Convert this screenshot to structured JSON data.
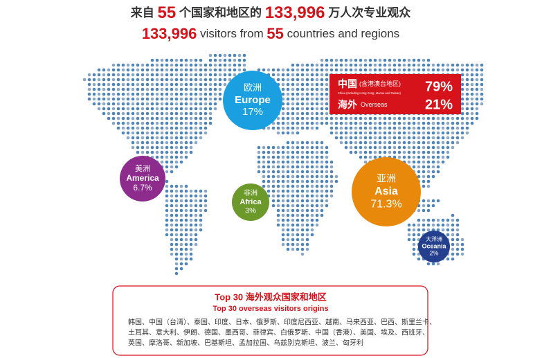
{
  "headline": {
    "zh": [
      "来自",
      "55",
      "个国家和地区的",
      "133,996",
      "万人次专业观众"
    ],
    "en": [
      "133,996",
      " visitors from ",
      "55",
      " countries and regions"
    ]
  },
  "regions": [
    {
      "zh": "欧洲",
      "en": "Europe",
      "share": "17%"
    },
    {
      "zh": "美洲",
      "en": "America",
      "share": "6.7%"
    },
    {
      "zh": "非洲",
      "en": "Africa",
      "share": "3%"
    },
    {
      "zh": "亚洲",
      "en": "Asia",
      "share": "71.3%"
    },
    {
      "zh": "大洋洲",
      "en": "Oceania",
      "share": "2%"
    }
  ],
  "share_box": [
    {
      "zh": "中国",
      "note": "(含港澳台地区)",
      "en": "China (Including Hong Kong, Macau and Taiwan)",
      "share": "79%"
    },
    {
      "zh": "海外",
      "en": "Overseas",
      "share": "21%"
    }
  ],
  "top30": {
    "title_zh": "Top 30 海外观众国家和地区",
    "title_en": "Top 30 overseas visitors origins",
    "lines": [
      "韩国、中国（台湾）、泰国、印度、日本、俄罗斯、印度尼西亚、越南、马来西亚、巴西、斯里兰卡、",
      "土耳其、意大利、伊朗、德国、墨西哥、菲律宾、白俄罗斯、中国（香港）、美国、埃及、西班牙、",
      "英国、摩洛哥、新加坡、巴基斯坦、孟加拉国、乌兹别克斯坦、波兰、匈牙利"
    ]
  }
}
